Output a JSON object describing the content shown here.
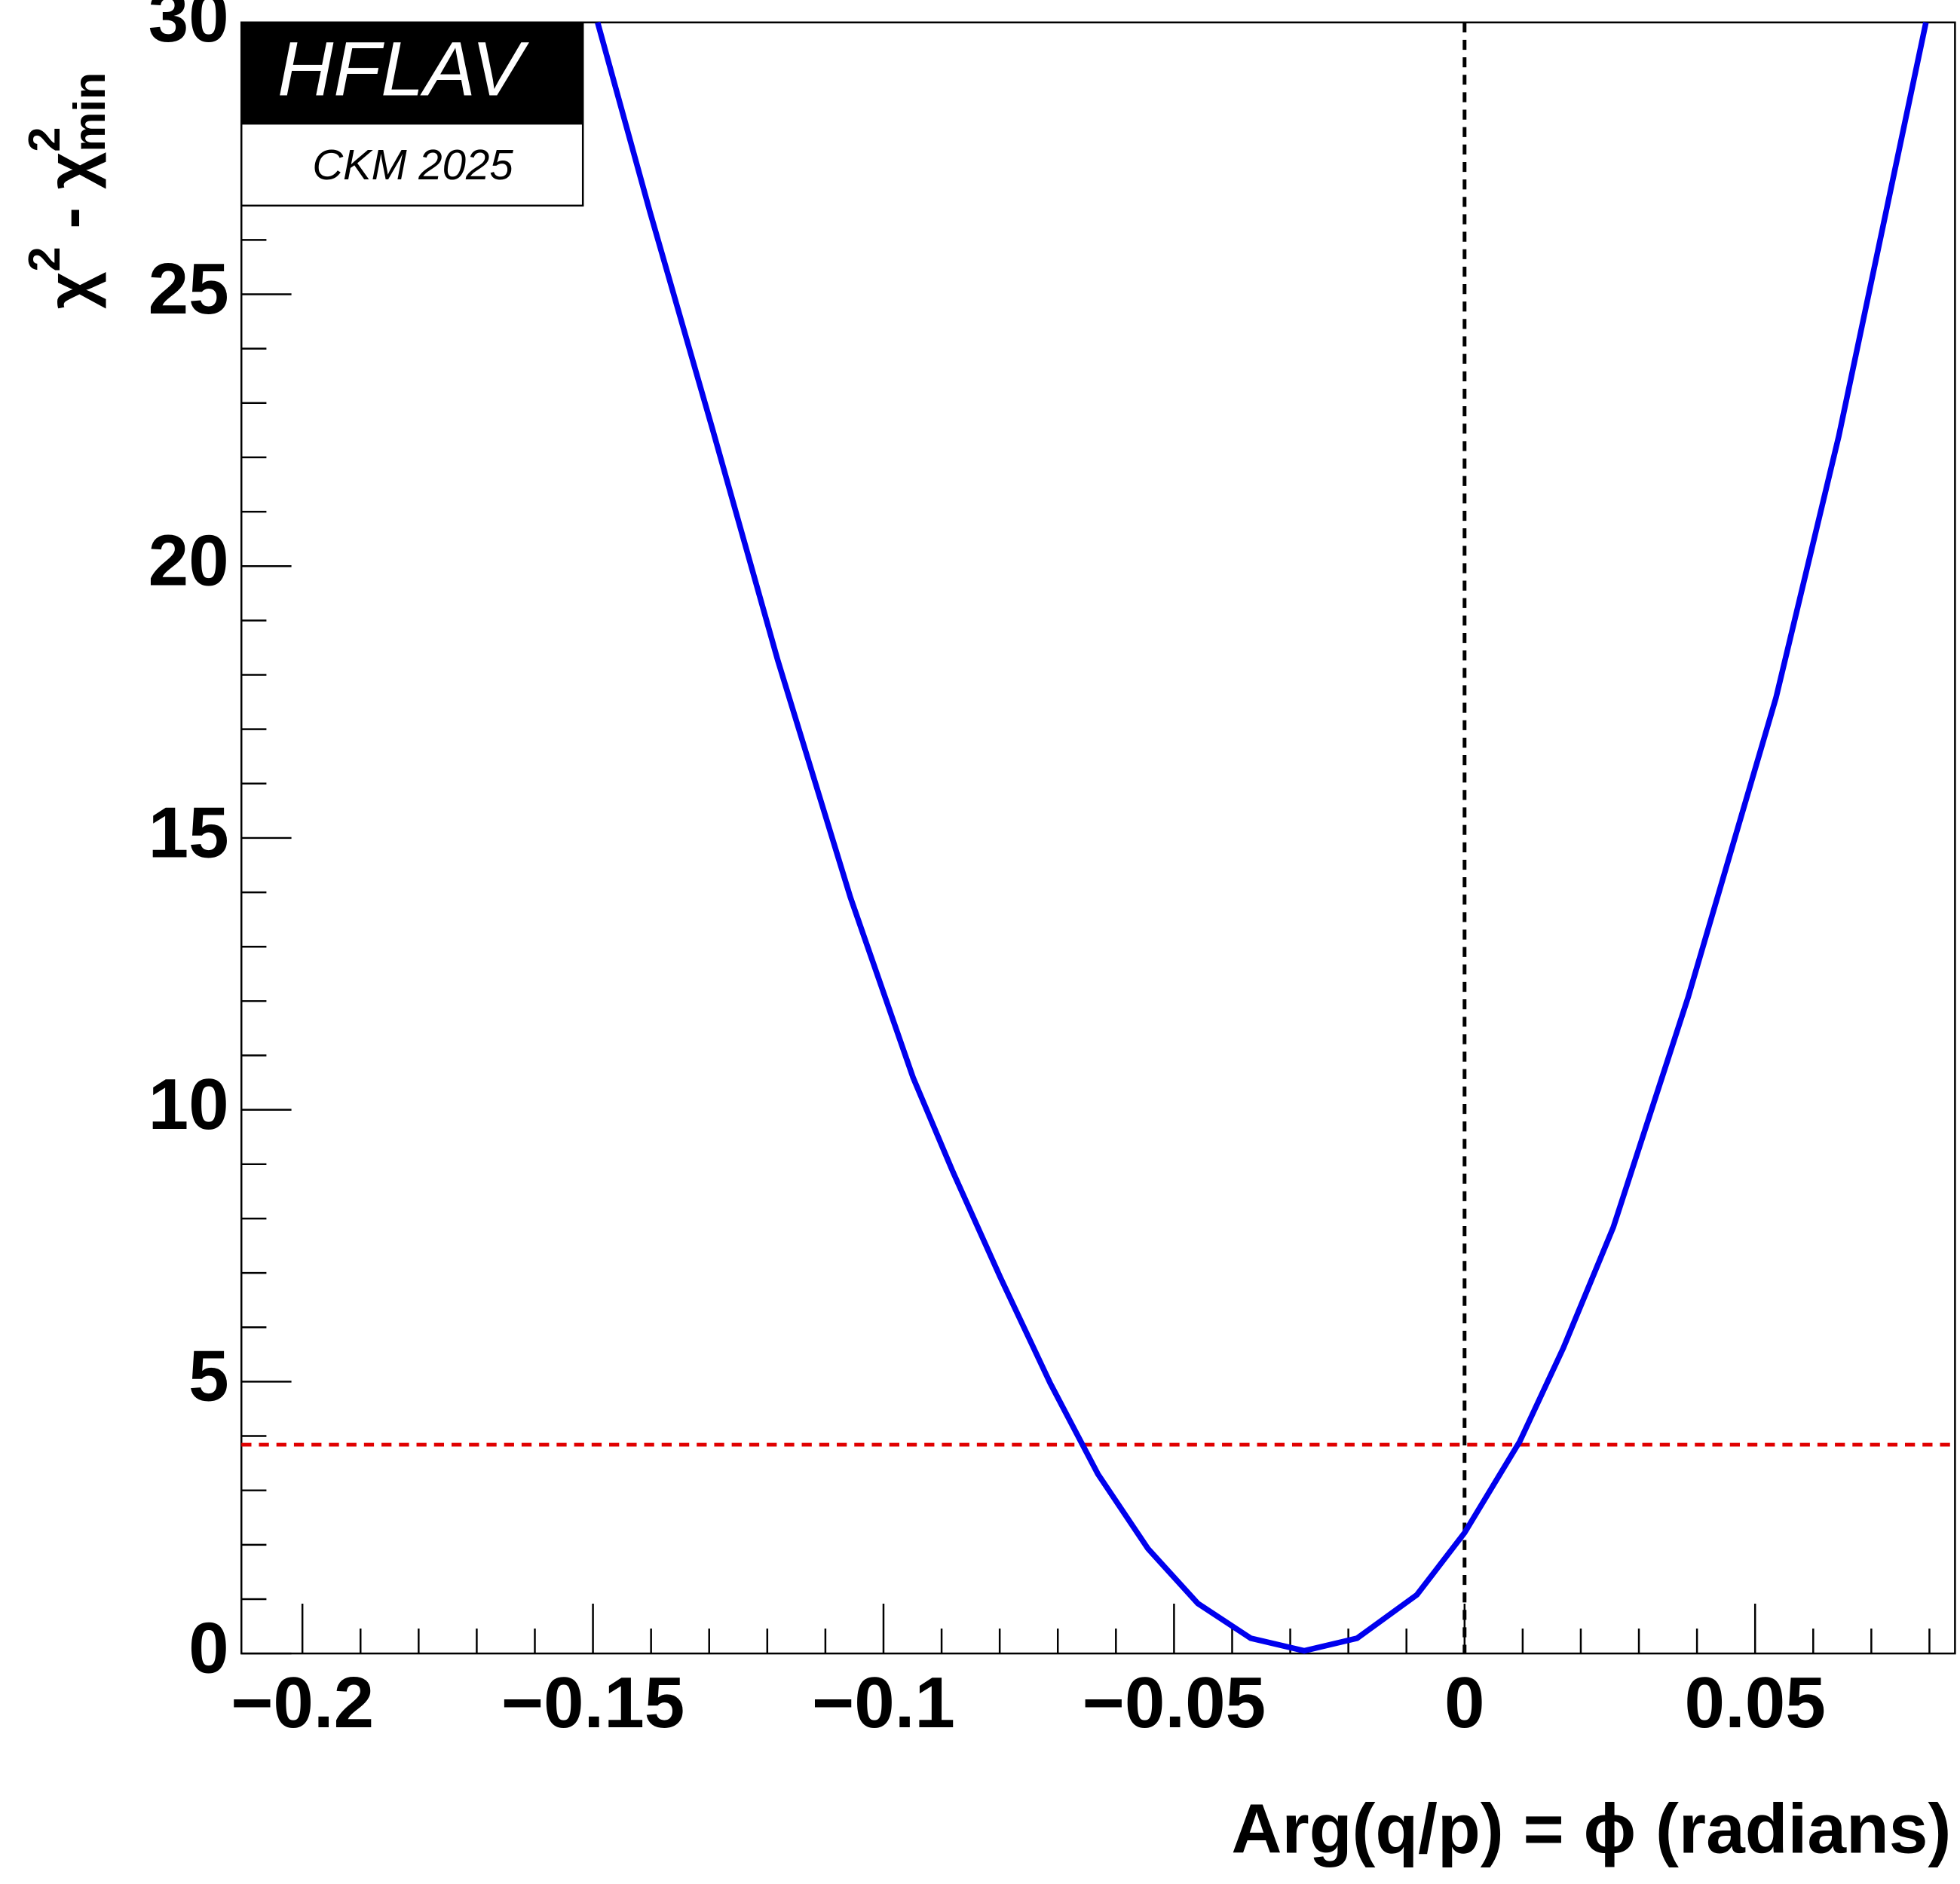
{
  "chart_data": {
    "type": "line",
    "x_label": "Arg(q/p) = ϕ (radians)",
    "y_label_parts": [
      "χ",
      "2",
      " - χ",
      "2",
      "min"
    ],
    "annotations": [
      "HFLAV",
      "CKM 2025"
    ],
    "xlim": [
      -0.2105,
      0.0844
    ],
    "ylim": [
      0,
      30
    ],
    "xticks": [
      {
        "value": -0.2,
        "label": "−0.2"
      },
      {
        "value": -0.15,
        "label": "−0.15"
      },
      {
        "value": -0.1,
        "label": "−0.1"
      },
      {
        "value": -0.05,
        "label": "−0.05"
      },
      0,
      0.05
    ],
    "xminorticks": [
      -0.19,
      -0.18,
      -0.17,
      -0.16,
      -0.14,
      -0.13,
      -0.12,
      -0.11,
      -0.09,
      -0.08,
      -0.07,
      -0.06,
      -0.04,
      -0.03,
      -0.02,
      -0.01,
      0.01,
      0.02,
      0.03,
      0.04,
      0.06,
      0.07,
      0.08
    ],
    "yticks": [
      0,
      5,
      10,
      15,
      20,
      25,
      30
    ],
    "yminorticks": [
      1,
      2,
      3,
      4,
      6,
      7,
      8,
      9,
      11,
      12,
      13,
      14,
      16,
      17,
      18,
      19,
      21,
      22,
      23,
      24,
      26,
      27,
      28,
      29
    ],
    "series": [
      {
        "color": "#0000ee",
        "x": [
          -0.1492,
          -0.1402,
          -0.1294,
          -0.1182,
          -0.1057,
          -0.0949,
          -0.0881,
          -0.0799,
          -0.0713,
          -0.0631,
          -0.0545,
          -0.0459,
          -0.0368,
          -0.0276,
          -0.0185,
          -0.0082,
          0,
          0.0095,
          0.017,
          0.0256,
          0.0385,
          0.0536,
          0.0644,
          0.0794
        ],
        "values": [
          30,
          26.52,
          22.51,
          18.27,
          13.91,
          10.59,
          8.87,
          6.92,
          4.97,
          3.3,
          1.93,
          0.92,
          0.28,
          0.05,
          0.28,
          1.08,
          2.22,
          3.9,
          5.62,
          7.84,
          12.08,
          17.58,
          22.39,
          30
        ]
      }
    ],
    "hline": {
      "value": 3.84,
      "color": "#e00000"
    },
    "vline": {
      "value": 0,
      "color": "#000000"
    }
  }
}
